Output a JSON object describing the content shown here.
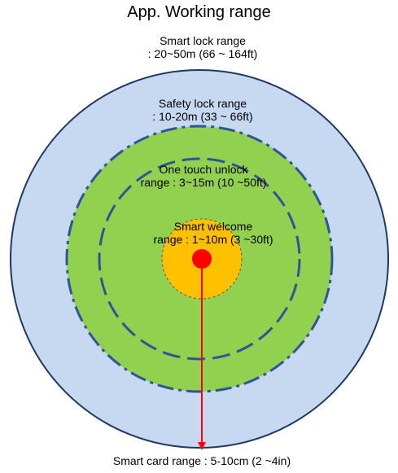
{
  "title": "App. Working range",
  "zones": {
    "smart_lock": {
      "line1": "Smart lock range",
      "line2": ": 20~50m (66 ~ 164ft)",
      "color": "#c6d9f1"
    },
    "safety_lock": {
      "line1": "Safety lock range",
      "line2": ": 10-20m (33 ~ 66ft)",
      "color": "#92d050"
    },
    "one_touch_unlock": {
      "line1": "One touch unlock",
      "line2": "range : 3~15m (10 ~50ft)"
    },
    "smart_welcome": {
      "line1": "Smart welcome",
      "line2": "range : 1~10m (3 ~30ft)",
      "color": "#ffc000"
    },
    "smart_card": {
      "label": "Smart card range : 5-10cm (2 ~4in)",
      "color": "#ff0000"
    }
  },
  "colors": {
    "outline": "#1f3864",
    "dashed_ring": "#2e5597"
  }
}
